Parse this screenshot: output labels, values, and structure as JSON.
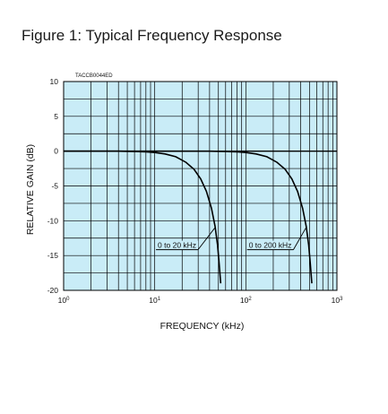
{
  "figure_title": "Figure 1: Typical Frequency Response",
  "chart_data": {
    "type": "line",
    "title": "Figure 1: Typical Frequency Response",
    "code_label": "TACCB0044ED",
    "xlabel": "FREQUENCY (kHz)",
    "ylabel": "RELATIVE GAIN (dB)",
    "x_scale": "log",
    "xlim": [
      1,
      1000
    ],
    "ylim": [
      -20,
      10
    ],
    "x_ticks": [
      1,
      10,
      100,
      1000
    ],
    "x_tick_labels": [
      {
        "base": "10",
        "exp": "0"
      },
      {
        "base": "10",
        "exp": "1"
      },
      {
        "base": "10",
        "exp": "2"
      },
      {
        "base": "10",
        "exp": "3"
      }
    ],
    "y_ticks": [
      10,
      5,
      0,
      -5,
      -10,
      -15,
      -20
    ],
    "grid": true,
    "plot_background": "#c9ecf7",
    "line_color": "#000000",
    "series": [
      {
        "name": "0 to 20 kHz",
        "x": [
          1,
          4,
          6,
          8,
          10,
          13,
          17,
          22,
          27,
          32,
          37,
          42,
          46,
          49,
          51,
          53
        ],
        "y": [
          0,
          0,
          -0.05,
          -0.1,
          -0.2,
          -0.4,
          -0.8,
          -1.6,
          -2.6,
          -4.0,
          -5.8,
          -8.2,
          -10.8,
          -13.5,
          -16.2,
          -19.0
        ]
      },
      {
        "name": "0 to 200 kHz",
        "x": [
          1,
          40,
          60,
          80,
          100,
          130,
          170,
          220,
          270,
          320,
          370,
          420,
          460,
          490,
          510,
          530
        ],
        "y": [
          0,
          0,
          -0.05,
          -0.1,
          -0.2,
          -0.4,
          -0.8,
          -1.6,
          -2.6,
          -4.0,
          -5.8,
          -8.2,
          -10.8,
          -13.5,
          -16.2,
          -19.0
        ]
      }
    ],
    "annotations": [
      {
        "text": "0 to 20 kHz",
        "series": 0
      },
      {
        "text": "0 to 200 kHz",
        "series": 1
      }
    ]
  }
}
